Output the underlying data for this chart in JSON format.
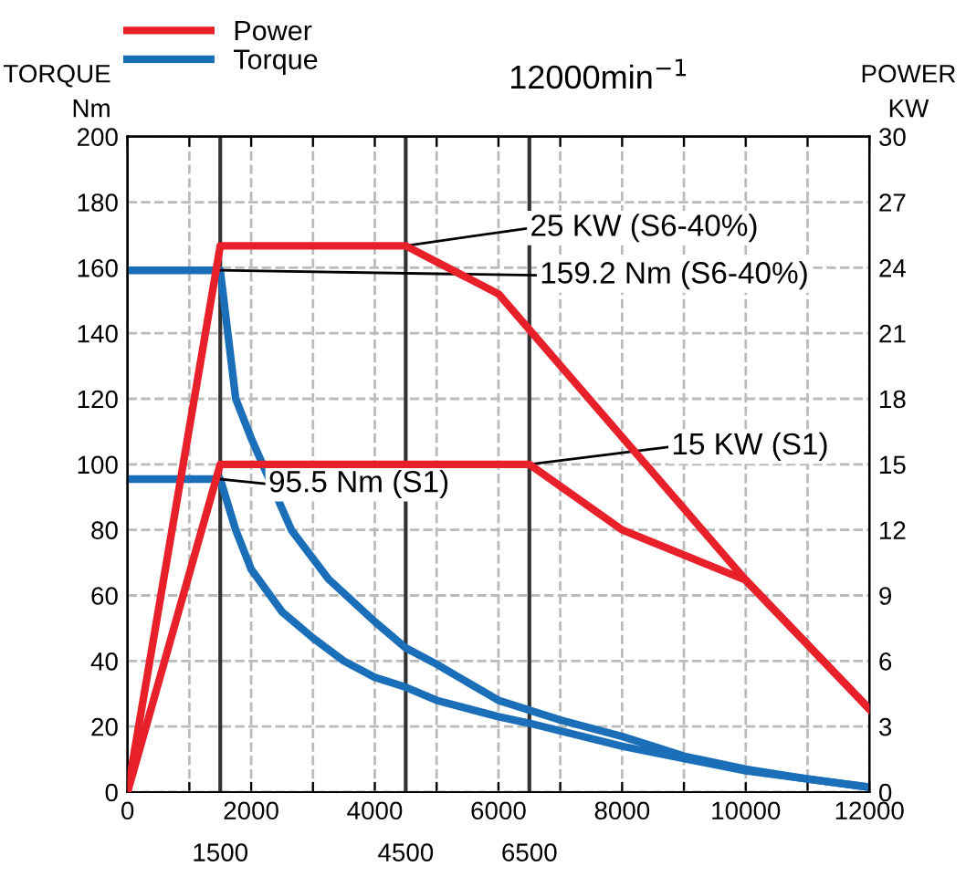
{
  "chart_data": {
    "type": "line",
    "title": "12000min$^{−1}$",
    "ylabel": "TORQUE\nNm",
    "y2label": "POWER\nKW",
    "xlim": [
      0,
      12000
    ],
    "xticks": [
      0,
      {
        "value": 1000,
        "label": null
      },
      2000,
      {
        "value": 3000,
        "label": null
      },
      4000,
      {
        "value": 5000,
        "label": null
      },
      6000,
      {
        "value": 7000,
        "label": null
      },
      8000,
      {
        "value": 9000,
        "label": null
      },
      10000,
      {
        "value": 11000,
        "label": null
      },
      12000
    ],
    "ylim": [
      0,
      200
    ],
    "yticks": [
      0,
      20,
      40,
      60,
      80,
      100,
      120,
      140,
      160,
      180,
      200
    ],
    "y2lim": [
      0,
      30
    ],
    "y2ticks": [
      0,
      3,
      6,
      9,
      12,
      15,
      18,
      21,
      24,
      27,
      30
    ],
    "grid": true,
    "legend": "top left",
    "line_style": "solid",
    "series": [
      {
        "name": "Power",
        "color": "#e8202a",
        "axis": "y2",
        "x": [
          0,
          1500,
          4500,
          6000,
          10000,
          12000
        ],
        "values": [
          0,
          25,
          25,
          22.8,
          9.7,
          3.8
        ]
      },
      {
        "color": "#e8202a",
        "axis": "y2",
        "x": [
          0,
          1500,
          6500,
          8000,
          10000,
          12000
        ],
        "values": [
          0,
          15,
          15,
          12,
          9.7,
          3.8
        ]
      },
      {
        "name": "Torque",
        "color": "#1a6fb8",
        "x": [
          0,
          1500,
          1750,
          2000,
          2650,
          3250,
          4000,
          4500,
          5000,
          6000,
          7000,
          8000,
          9000,
          10000,
          11000,
          12000
        ],
        "values": [
          159.2,
          159.2,
          120,
          108,
          80,
          65,
          52,
          44,
          39,
          28,
          22,
          17,
          11,
          7,
          4,
          1.5
        ]
      },
      {
        "color": "#1a6fb8",
        "x": [
          0,
          1500,
          1750,
          2000,
          2500,
          3000,
          3500,
          4000,
          4500,
          5000,
          6000,
          6500,
          8000,
          10000,
          12000
        ],
        "values": [
          95.5,
          95.5,
          80,
          68,
          55,
          47,
          40,
          35,
          32,
          28,
          23,
          21,
          14,
          6.5,
          1.5
        ]
      }
    ],
    "ref_lines": [
      {
        "axis": "x",
        "value": 1500,
        "label": "1500",
        "color": "#333333"
      },
      {
        "axis": "x",
        "value": 4500,
        "label": "4500",
        "color": "#333333"
      },
      {
        "axis": "x",
        "value": 6500,
        "label": "6500",
        "color": "#333333"
      }
    ],
    "annotations": [
      {
        "text": "25 KW (S6-40%)",
        "x": 4500,
        "y": 166.7
      },
      {
        "text": "159.2 Nm (S6-40%)",
        "x": 1500,
        "y": 159.2
      },
      {
        "text": "15 KW (S1)",
        "x": 6500,
        "y": 100
      },
      {
        "text": "95.5 Nm (S1)",
        "x": 1500,
        "y": 95.5
      }
    ]
  }
}
